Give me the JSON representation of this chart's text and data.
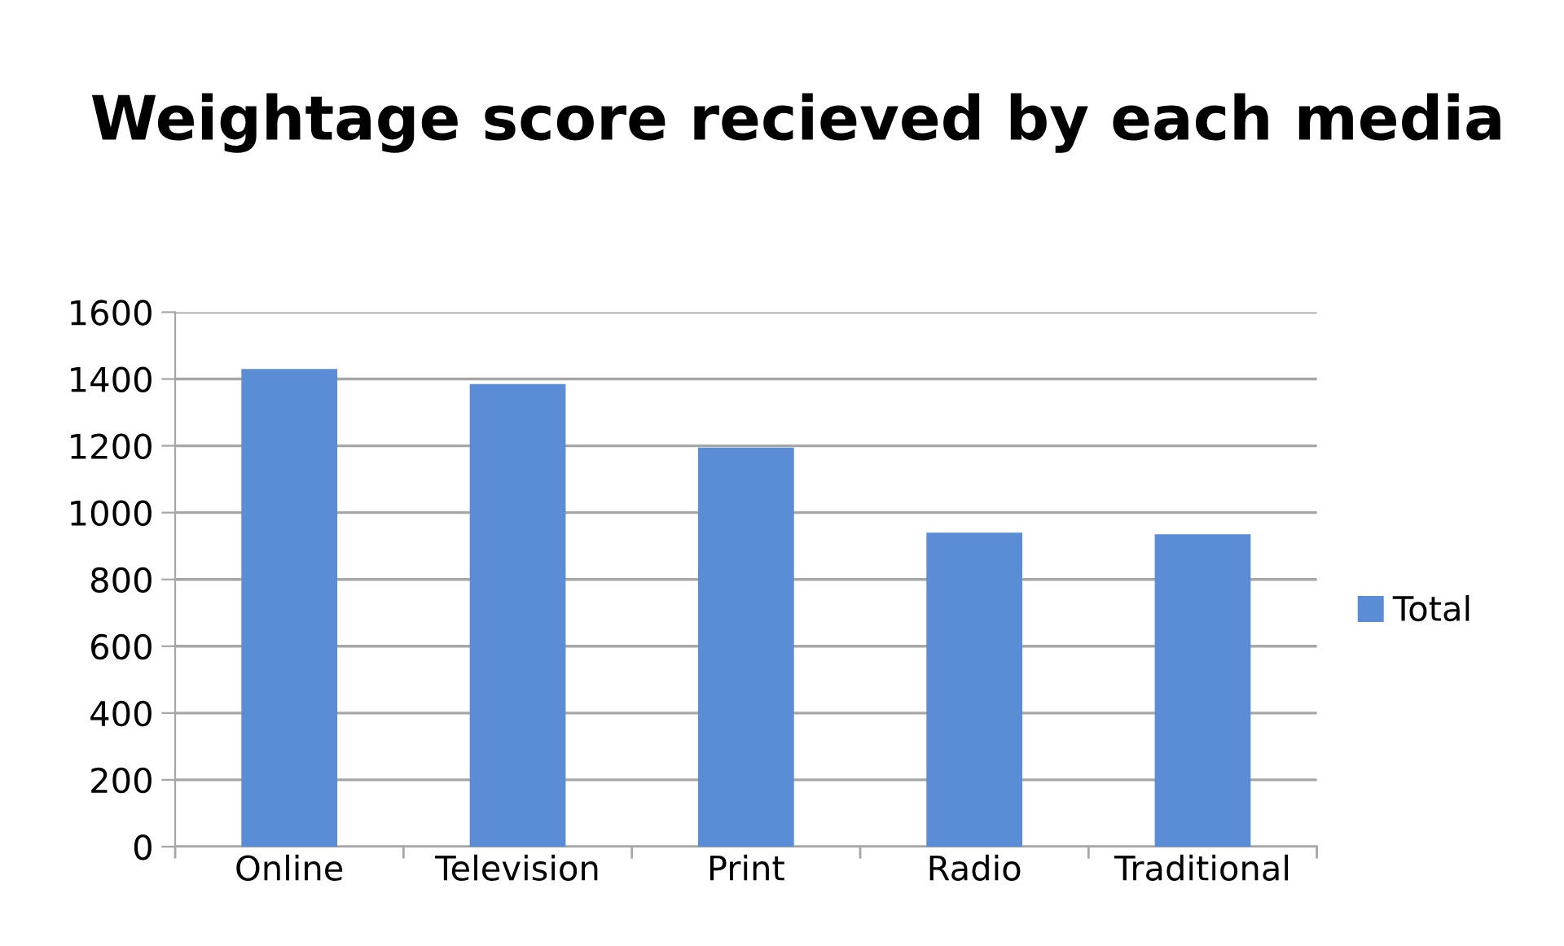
{
  "chart_data": {
    "type": "bar",
    "title": "Weightage score recieved by each media",
    "categories": [
      "Online",
      "Television",
      "Print",
      "Radio",
      "Traditional"
    ],
    "series": [
      {
        "name": "Total",
        "color": "#5b8dd6",
        "values": [
          1430,
          1385,
          1195,
          940,
          935
        ]
      }
    ],
    "ylim": [
      0,
      1600
    ],
    "yticks": [
      0,
      200,
      400,
      600,
      800,
      1000,
      1200,
      1400,
      1600
    ],
    "grid": "y",
    "legend": "right"
  }
}
